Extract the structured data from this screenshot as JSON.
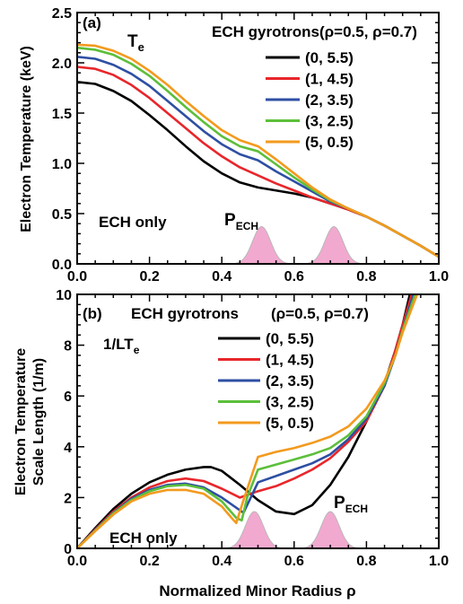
{
  "chart_data": [
    {
      "type": "line",
      "panel_label": "(a)",
      "quantity_label": "T",
      "quantity_subscript": "e",
      "legend_title": "ECH gyrotrons",
      "legend_header": "(ρ=0.5, ρ=0.7)",
      "ylabel": "Electron Temperature (keV)",
      "xlabel": "",
      "xlim": [
        0,
        1.0
      ],
      "ylim": [
        0,
        2.5
      ],
      "xticks": [
        "0.0",
        "0.2",
        "0.4",
        "0.6",
        "0.8",
        "1.0"
      ],
      "yticks": [
        "0.0",
        "0.5",
        "1.0",
        "1.5",
        "2.0",
        "2.5"
      ],
      "annotations": {
        "ech_only": "ECH only",
        "pech": "P",
        "pech_sub": "ECH"
      },
      "series": [
        {
          "name": "(0, 5.5)",
          "color": "#000000",
          "x": [
            0,
            0.05,
            0.1,
            0.15,
            0.2,
            0.25,
            0.3,
            0.35,
            0.4,
            0.45,
            0.5,
            0.55,
            0.6,
            0.65,
            0.7,
            0.75,
            0.8,
            0.85,
            0.9,
            0.95,
            1.0
          ],
          "y": [
            1.81,
            1.79,
            1.72,
            1.62,
            1.48,
            1.33,
            1.17,
            1.02,
            0.9,
            0.81,
            0.76,
            0.73,
            0.7,
            0.66,
            0.6,
            0.54,
            0.47,
            0.38,
            0.28,
            0.18,
            0.07
          ]
        },
        {
          "name": "(1, 4.5)",
          "color": "#e8262b",
          "x": [
            0,
            0.05,
            0.1,
            0.15,
            0.2,
            0.25,
            0.3,
            0.35,
            0.4,
            0.45,
            0.5,
            0.55,
            0.6,
            0.65,
            0.7,
            0.75,
            0.8,
            0.85,
            0.9,
            0.95,
            1.0
          ],
          "y": [
            1.96,
            1.94,
            1.88,
            1.78,
            1.65,
            1.5,
            1.35,
            1.2,
            1.07,
            0.96,
            0.88,
            0.8,
            0.73,
            0.66,
            0.6,
            0.54,
            0.47,
            0.38,
            0.28,
            0.18,
            0.07
          ]
        },
        {
          "name": "(2, 3.5)",
          "color": "#2e4fa3",
          "x": [
            0,
            0.05,
            0.1,
            0.15,
            0.2,
            0.25,
            0.3,
            0.35,
            0.4,
            0.45,
            0.5,
            0.55,
            0.6,
            0.65,
            0.7,
            0.75,
            0.8,
            0.85,
            0.9,
            0.95,
            1.0
          ],
          "y": [
            2.06,
            2.04,
            1.98,
            1.89,
            1.77,
            1.62,
            1.47,
            1.32,
            1.19,
            1.09,
            1.03,
            0.92,
            0.82,
            0.72,
            0.62,
            0.55,
            0.47,
            0.38,
            0.28,
            0.18,
            0.07
          ]
        },
        {
          "name": "(3, 2.5)",
          "color": "#5cbf3a",
          "x": [
            0,
            0.05,
            0.1,
            0.15,
            0.2,
            0.25,
            0.3,
            0.35,
            0.4,
            0.45,
            0.5,
            0.55,
            0.6,
            0.65,
            0.7,
            0.75,
            0.8,
            0.85,
            0.9,
            0.95,
            1.0
          ],
          "y": [
            2.15,
            2.13,
            2.08,
            1.99,
            1.87,
            1.72,
            1.56,
            1.41,
            1.27,
            1.17,
            1.12,
            0.99,
            0.86,
            0.74,
            0.63,
            0.55,
            0.47,
            0.38,
            0.28,
            0.18,
            0.07
          ]
        },
        {
          "name": "(5, 0.5)",
          "color": "#f39a1e",
          "x": [
            0,
            0.05,
            0.1,
            0.15,
            0.2,
            0.25,
            0.3,
            0.35,
            0.4,
            0.45,
            0.5,
            0.55,
            0.6,
            0.65,
            0.7,
            0.75,
            0.8,
            0.85,
            0.9,
            0.95,
            1.0
          ],
          "y": [
            2.18,
            2.17,
            2.12,
            2.04,
            1.92,
            1.78,
            1.62,
            1.47,
            1.33,
            1.23,
            1.17,
            1.04,
            0.9,
            0.76,
            0.64,
            0.55,
            0.47,
            0.38,
            0.28,
            0.18,
            0.07
          ]
        }
      ],
      "deposition_peaks": [
        {
          "center": 0.51,
          "height": 0.37,
          "width": 0.025
        },
        {
          "center": 0.71,
          "height": 0.37,
          "width": 0.025
        }
      ],
      "deposition_color": "#f2a9cf"
    },
    {
      "type": "line",
      "panel_label": "(b)",
      "quantity_label": "1/LT",
      "quantity_subscript": "e",
      "legend_title": "ECH gyrotrons",
      "legend_header": "(ρ=0.5, ρ=0.7)",
      "ylabel_line1": "Electron Temperature",
      "ylabel_line2": "Scale Length (1/m)",
      "xlabel": "Normalized Minor Radius ρ",
      "xlim": [
        0,
        1.0
      ],
      "ylim": [
        0,
        10
      ],
      "xticks": [
        "0.0",
        "0.2",
        "0.4",
        "0.6",
        "0.8",
        "1.0"
      ],
      "yticks": [
        "0",
        "2",
        "4",
        "6",
        "8",
        "10"
      ],
      "annotations": {
        "ech_only": "ECH only",
        "pech": "P",
        "pech_sub": "ECH"
      },
      "series": [
        {
          "name": "(0, 5.5)",
          "color": "#000000",
          "x": [
            0,
            0.05,
            0.1,
            0.15,
            0.2,
            0.25,
            0.3,
            0.35,
            0.37,
            0.4,
            0.45,
            0.5,
            0.55,
            0.6,
            0.65,
            0.7,
            0.75,
            0.8,
            0.85,
            0.88,
            0.9,
            0.92
          ],
          "y": [
            0,
            0.8,
            1.55,
            2.15,
            2.6,
            2.9,
            3.1,
            3.2,
            3.2,
            3.05,
            2.5,
            1.9,
            1.45,
            1.35,
            1.7,
            2.5,
            3.6,
            5.0,
            6.5,
            7.8,
            8.8,
            10.0
          ]
        },
        {
          "name": "(1, 4.5)",
          "color": "#e8262b",
          "x": [
            0,
            0.05,
            0.1,
            0.15,
            0.2,
            0.25,
            0.3,
            0.35,
            0.4,
            0.45,
            0.47,
            0.5,
            0.55,
            0.6,
            0.65,
            0.7,
            0.75,
            0.8,
            0.85,
            0.88,
            0.9,
            0.925
          ],
          "y": [
            0,
            0.75,
            1.45,
            2.0,
            2.4,
            2.65,
            2.75,
            2.65,
            2.35,
            2.0,
            2.1,
            2.25,
            2.45,
            2.75,
            3.1,
            3.55,
            4.2,
            5.0,
            6.4,
            7.8,
            8.8,
            10.0
          ]
        },
        {
          "name": "(2, 3.5)",
          "color": "#2e4fa3",
          "x": [
            0,
            0.05,
            0.1,
            0.15,
            0.2,
            0.25,
            0.3,
            0.35,
            0.4,
            0.45,
            0.46,
            0.48,
            0.5,
            0.55,
            0.6,
            0.65,
            0.7,
            0.75,
            0.8,
            0.85,
            0.88,
            0.9,
            0.93
          ],
          "y": [
            0,
            0.72,
            1.4,
            1.95,
            2.3,
            2.5,
            2.55,
            2.4,
            2.0,
            1.5,
            1.4,
            2.0,
            2.6,
            2.85,
            3.1,
            3.35,
            3.7,
            4.3,
            5.1,
            6.4,
            7.6,
            8.6,
            10.0
          ]
        },
        {
          "name": "(3, 2.5)",
          "color": "#5cbf3a",
          "x": [
            0,
            0.05,
            0.1,
            0.15,
            0.2,
            0.25,
            0.3,
            0.35,
            0.4,
            0.44,
            0.455,
            0.47,
            0.5,
            0.55,
            0.6,
            0.65,
            0.7,
            0.75,
            0.8,
            0.85,
            0.88,
            0.9,
            0.935
          ],
          "y": [
            0,
            0.7,
            1.38,
            1.9,
            2.25,
            2.45,
            2.5,
            2.35,
            1.85,
            1.2,
            1.1,
            2.0,
            3.1,
            3.3,
            3.5,
            3.7,
            3.95,
            4.45,
            5.2,
            6.5,
            7.6,
            8.6,
            10.0
          ]
        },
        {
          "name": "(5, 0.5)",
          "color": "#f39a1e",
          "x": [
            0,
            0.05,
            0.1,
            0.15,
            0.2,
            0.25,
            0.3,
            0.35,
            0.4,
            0.43,
            0.44,
            0.46,
            0.5,
            0.55,
            0.6,
            0.65,
            0.7,
            0.75,
            0.8,
            0.85,
            0.88,
            0.9,
            0.94
          ],
          "y": [
            0,
            0.68,
            1.33,
            1.85,
            2.15,
            2.3,
            2.3,
            2.15,
            1.65,
            1.15,
            1.0,
            1.9,
            3.6,
            3.8,
            3.95,
            4.15,
            4.4,
            4.8,
            5.5,
            6.6,
            7.6,
            8.5,
            10.0
          ]
        }
      ],
      "deposition_peaks": [
        {
          "center": 0.49,
          "height": 1.45,
          "width": 0.025
        },
        {
          "center": 0.7,
          "height": 1.45,
          "width": 0.025
        }
      ],
      "deposition_color": "#f2a9cf"
    }
  ]
}
